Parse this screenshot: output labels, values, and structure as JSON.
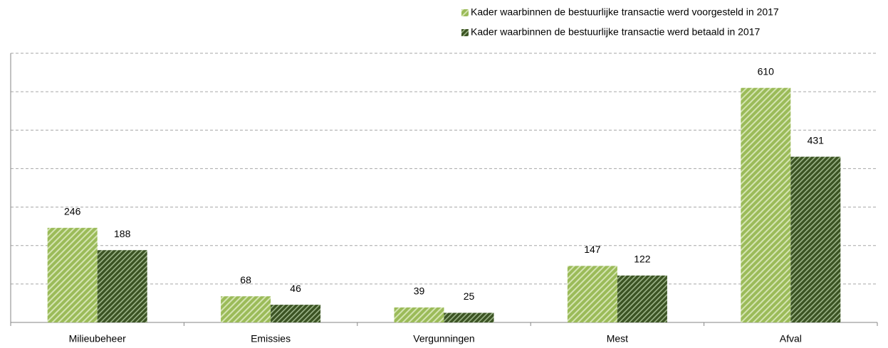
{
  "chart_data": {
    "type": "bar",
    "categories": [
      "Milieubeheer",
      "Emissies",
      "Vergunningen",
      "Mest",
      "Afval"
    ],
    "series": [
      {
        "name": "Kader waarbinnen de bestuurlijke transactie werd voorgesteld in 2017",
        "color": "#9bbb59",
        "values": [
          246,
          68,
          39,
          147,
          610
        ]
      },
      {
        "name": "Kader waarbinnen de bestuurlijke transactie werd betaald in 2017",
        "color": "#3b5323",
        "values": [
          188,
          46,
          25,
          122,
          431
        ]
      }
    ],
    "ylim": [
      0,
      700
    ],
    "yticks": [
      100,
      200,
      300,
      400,
      500,
      600,
      700
    ],
    "grid": true
  }
}
